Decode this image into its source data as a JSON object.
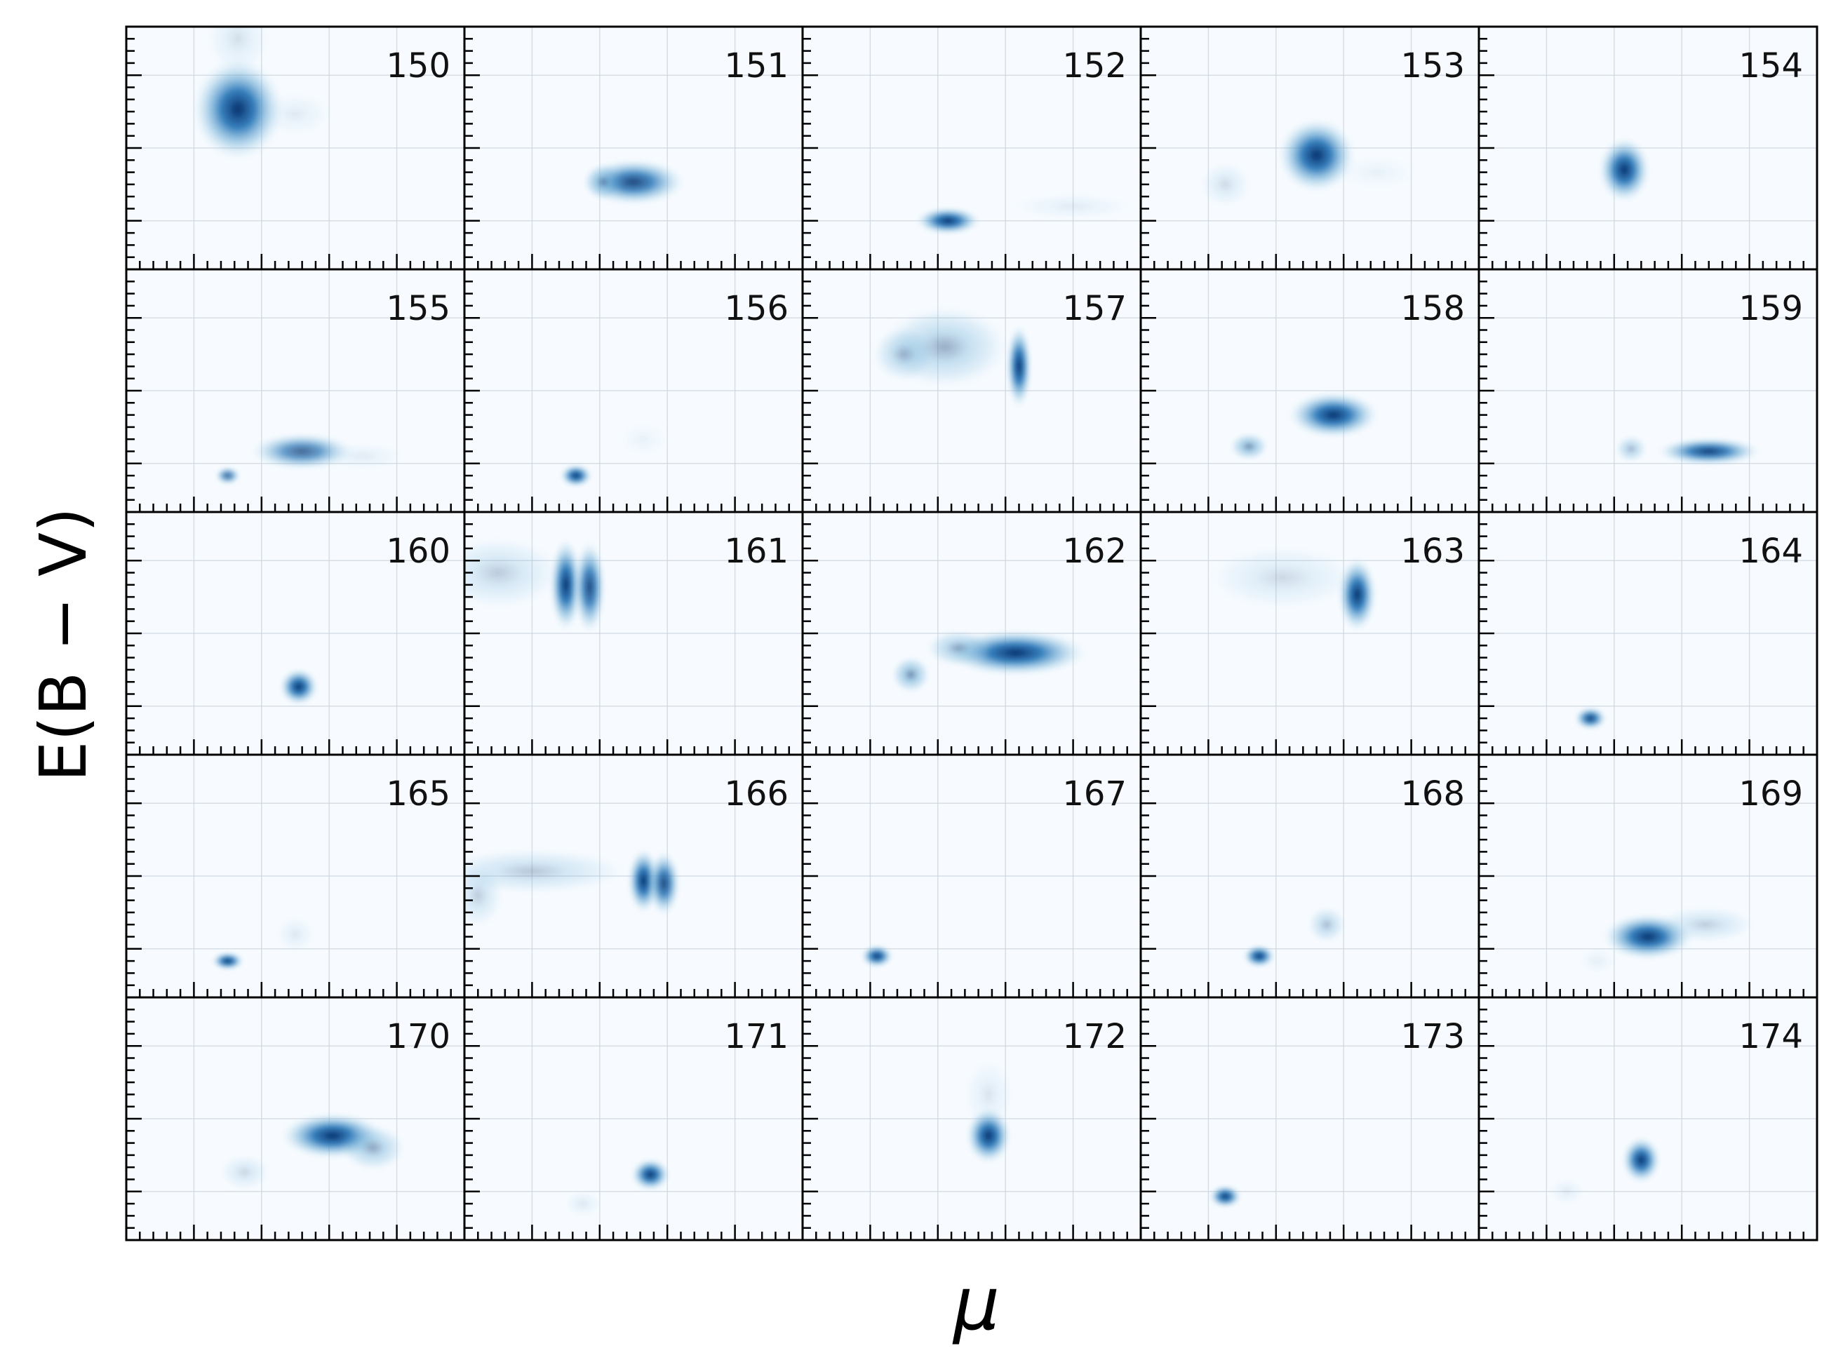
{
  "chart_data": {
    "type": "heatmap",
    "title": "",
    "xlabel": "μ",
    "ylabel": "E(B − V)",
    "colormap": "Blues",
    "colors": {
      "low": "#f7fbff",
      "mid": "#6baed6",
      "high": "#08306b",
      "frame": "#000000",
      "grid": "#c9d2da"
    },
    "layout": {
      "rows": 5,
      "cols": 5
    },
    "grid": true,
    "tick_labels_shown": false,
    "note_units": "blob centers/sizes are fractions of each panel's axis range (x: 0–1 left→right, y: 0–1 bottom→top)",
    "panels": [
      {
        "label": "150",
        "blobs": [
          {
            "x": 0.33,
            "y": 0.66,
            "sx": 0.07,
            "sy": 0.11,
            "amp": 1.0
          },
          {
            "x": 0.5,
            "y": 0.64,
            "sx": 0.06,
            "sy": 0.05,
            "amp": 0.1
          },
          {
            "x": 0.33,
            "y": 0.95,
            "sx": 0.05,
            "sy": 0.08,
            "amp": 0.15
          }
        ]
      },
      {
        "label": "151",
        "blobs": [
          {
            "x": 0.5,
            "y": 0.36,
            "sx": 0.08,
            "sy": 0.05,
            "amp": 0.9
          },
          {
            "x": 0.41,
            "y": 0.36,
            "sx": 0.03,
            "sy": 0.04,
            "amp": 0.5
          }
        ]
      },
      {
        "label": "152",
        "blobs": [
          {
            "x": 0.43,
            "y": 0.2,
            "sx": 0.05,
            "sy": 0.03,
            "amp": 1.0
          },
          {
            "x": 0.8,
            "y": 0.26,
            "sx": 0.1,
            "sy": 0.03,
            "amp": 0.1
          }
        ]
      },
      {
        "label": "153",
        "blobs": [
          {
            "x": 0.52,
            "y": 0.47,
            "sx": 0.06,
            "sy": 0.08,
            "amp": 1.0
          },
          {
            "x": 0.25,
            "y": 0.35,
            "sx": 0.04,
            "sy": 0.05,
            "amp": 0.18
          },
          {
            "x": 0.7,
            "y": 0.4,
            "sx": 0.07,
            "sy": 0.04,
            "amp": 0.06
          }
        ]
      },
      {
        "label": "154",
        "blobs": [
          {
            "x": 0.43,
            "y": 0.41,
            "sx": 0.04,
            "sy": 0.07,
            "amp": 1.0
          }
        ]
      },
      {
        "label": "155",
        "blobs": [
          {
            "x": 0.52,
            "y": 0.25,
            "sx": 0.08,
            "sy": 0.04,
            "amp": 0.75
          },
          {
            "x": 0.3,
            "y": 0.15,
            "sx": 0.02,
            "sy": 0.02,
            "amp": 0.75
          },
          {
            "x": 0.7,
            "y": 0.23,
            "sx": 0.07,
            "sy": 0.03,
            "amp": 0.1
          }
        ]
      },
      {
        "label": "156",
        "blobs": [
          {
            "x": 0.33,
            "y": 0.15,
            "sx": 0.025,
            "sy": 0.025,
            "amp": 1.0
          },
          {
            "x": 0.53,
            "y": 0.3,
            "sx": 0.04,
            "sy": 0.04,
            "amp": 0.06
          }
        ]
      },
      {
        "label": "157",
        "blobs": [
          {
            "x": 0.64,
            "y": 0.6,
            "sx": 0.02,
            "sy": 0.09,
            "amp": 1.0
          },
          {
            "x": 0.42,
            "y": 0.68,
            "sx": 0.1,
            "sy": 0.09,
            "amp": 0.4
          },
          {
            "x": 0.3,
            "y": 0.65,
            "sx": 0.05,
            "sy": 0.06,
            "amp": 0.35
          }
        ]
      },
      {
        "label": "158",
        "blobs": [
          {
            "x": 0.57,
            "y": 0.4,
            "sx": 0.07,
            "sy": 0.05,
            "amp": 1.0
          },
          {
            "x": 0.32,
            "y": 0.27,
            "sx": 0.03,
            "sy": 0.03,
            "amp": 0.6
          }
        ]
      },
      {
        "label": "159",
        "blobs": [
          {
            "x": 0.68,
            "y": 0.25,
            "sx": 0.08,
            "sy": 0.03,
            "amp": 0.95
          },
          {
            "x": 0.45,
            "y": 0.26,
            "sx": 0.025,
            "sy": 0.03,
            "amp": 0.4
          }
        ]
      },
      {
        "label": "160",
        "blobs": [
          {
            "x": 0.51,
            "y": 0.28,
            "sx": 0.03,
            "sy": 0.04,
            "amp": 1.0
          }
        ]
      },
      {
        "label": "161",
        "blobs": [
          {
            "x": 0.3,
            "y": 0.7,
            "sx": 0.025,
            "sy": 0.1,
            "amp": 1.0
          },
          {
            "x": 0.37,
            "y": 0.69,
            "sx": 0.025,
            "sy": 0.1,
            "amp": 0.9
          },
          {
            "x": 0.1,
            "y": 0.75,
            "sx": 0.1,
            "sy": 0.08,
            "amp": 0.25
          }
        ]
      },
      {
        "label": "162",
        "blobs": [
          {
            "x": 0.63,
            "y": 0.42,
            "sx": 0.11,
            "sy": 0.05,
            "amp": 1.0
          },
          {
            "x": 0.46,
            "y": 0.44,
            "sx": 0.05,
            "sy": 0.04,
            "amp": 0.45
          },
          {
            "x": 0.32,
            "y": 0.33,
            "sx": 0.03,
            "sy": 0.04,
            "amp": 0.6
          }
        ]
      },
      {
        "label": "163",
        "blobs": [
          {
            "x": 0.64,
            "y": 0.66,
            "sx": 0.03,
            "sy": 0.08,
            "amp": 1.0
          },
          {
            "x": 0.42,
            "y": 0.73,
            "sx": 0.12,
            "sy": 0.07,
            "amp": 0.18
          }
        ]
      },
      {
        "label": "164",
        "blobs": [
          {
            "x": 0.33,
            "y": 0.15,
            "sx": 0.025,
            "sy": 0.025,
            "amp": 0.95
          }
        ]
      },
      {
        "label": "165",
        "blobs": [
          {
            "x": 0.3,
            "y": 0.15,
            "sx": 0.025,
            "sy": 0.02,
            "amp": 1.0
          },
          {
            "x": 0.5,
            "y": 0.26,
            "sx": 0.03,
            "sy": 0.04,
            "amp": 0.12
          }
        ]
      },
      {
        "label": "166",
        "blobs": [
          {
            "x": 0.53,
            "y": 0.48,
            "sx": 0.025,
            "sy": 0.07,
            "amp": 1.0
          },
          {
            "x": 0.59,
            "y": 0.47,
            "sx": 0.025,
            "sy": 0.07,
            "amp": 0.9
          },
          {
            "x": 0.2,
            "y": 0.52,
            "sx": 0.15,
            "sy": 0.05,
            "amp": 0.28
          },
          {
            "x": 0.04,
            "y": 0.42,
            "sx": 0.04,
            "sy": 0.07,
            "amp": 0.25
          }
        ]
      },
      {
        "label": "167",
        "blobs": [
          {
            "x": 0.22,
            "y": 0.17,
            "sx": 0.025,
            "sy": 0.025,
            "amp": 1.0
          }
        ]
      },
      {
        "label": "168",
        "blobs": [
          {
            "x": 0.35,
            "y": 0.17,
            "sx": 0.025,
            "sy": 0.025,
            "amp": 1.0
          },
          {
            "x": 0.55,
            "y": 0.3,
            "sx": 0.03,
            "sy": 0.04,
            "amp": 0.35
          }
        ]
      },
      {
        "label": "169",
        "blobs": [
          {
            "x": 0.5,
            "y": 0.25,
            "sx": 0.07,
            "sy": 0.05,
            "amp": 1.0
          },
          {
            "x": 0.67,
            "y": 0.3,
            "sx": 0.08,
            "sy": 0.04,
            "amp": 0.25
          },
          {
            "x": 0.35,
            "y": 0.15,
            "sx": 0.03,
            "sy": 0.03,
            "amp": 0.08
          }
        ]
      },
      {
        "label": "170",
        "blobs": [
          {
            "x": 0.61,
            "y": 0.43,
            "sx": 0.08,
            "sy": 0.05,
            "amp": 1.0
          },
          {
            "x": 0.73,
            "y": 0.38,
            "sx": 0.05,
            "sy": 0.05,
            "amp": 0.45
          },
          {
            "x": 0.35,
            "y": 0.28,
            "sx": 0.04,
            "sy": 0.04,
            "amp": 0.2
          }
        ]
      },
      {
        "label": "171",
        "blobs": [
          {
            "x": 0.55,
            "y": 0.27,
            "sx": 0.03,
            "sy": 0.035,
            "amp": 1.0
          },
          {
            "x": 0.35,
            "y": 0.15,
            "sx": 0.03,
            "sy": 0.03,
            "amp": 0.12
          }
        ]
      },
      {
        "label": "172",
        "blobs": [
          {
            "x": 0.55,
            "y": 0.43,
            "sx": 0.035,
            "sy": 0.06,
            "amp": 1.0
          },
          {
            "x": 0.55,
            "y": 0.6,
            "sx": 0.04,
            "sy": 0.08,
            "amp": 0.12
          }
        ]
      },
      {
        "label": "173",
        "blobs": [
          {
            "x": 0.25,
            "y": 0.18,
            "sx": 0.025,
            "sy": 0.025,
            "amp": 1.0
          }
        ]
      },
      {
        "label": "174",
        "blobs": [
          {
            "x": 0.48,
            "y": 0.33,
            "sx": 0.03,
            "sy": 0.05,
            "amp": 1.0
          },
          {
            "x": 0.26,
            "y": 0.2,
            "sx": 0.03,
            "sy": 0.03,
            "amp": 0.1
          }
        ]
      }
    ]
  }
}
